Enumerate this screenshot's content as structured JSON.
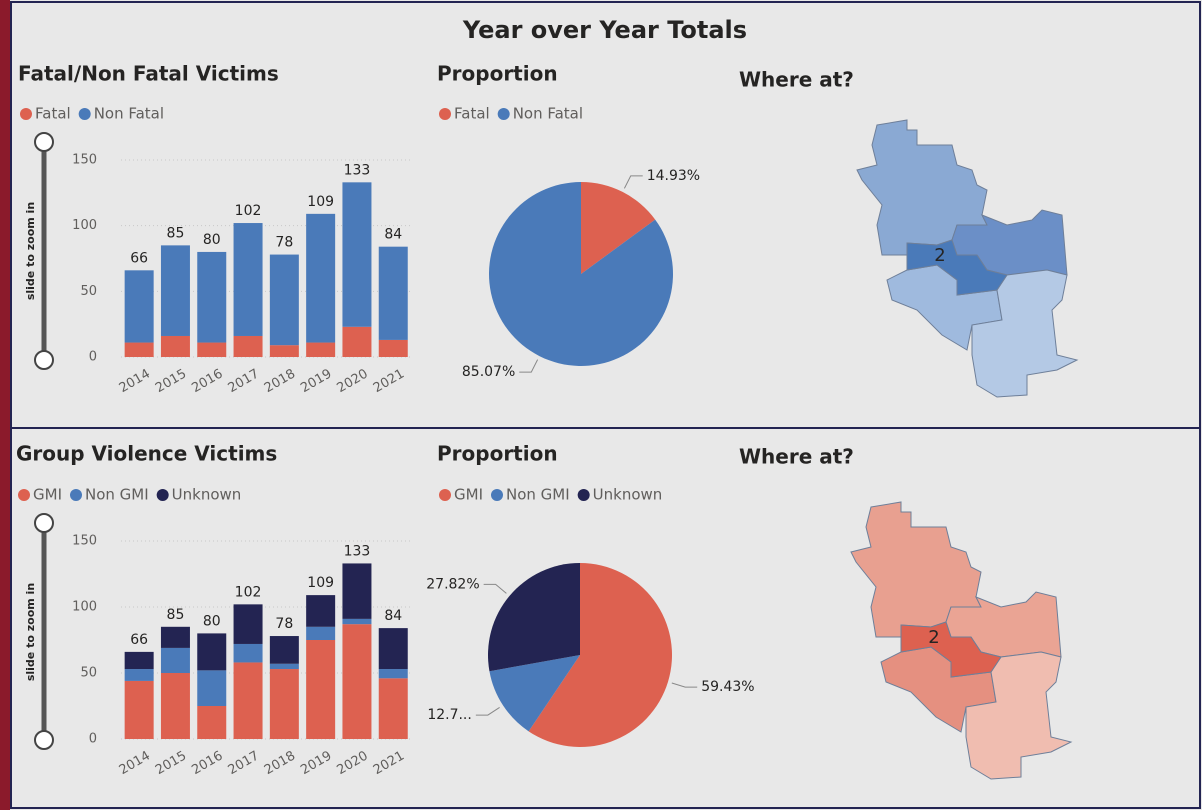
{
  "title": "Year over Year Totals",
  "slider_label": "slide to zoom in",
  "maps": [
    {
      "title": "Where at?",
      "label": "2"
    },
    {
      "title": "Where at?",
      "label": "2"
    }
  ],
  "chart_data": [
    {
      "type": "bar",
      "title": "Fatal/Non Fatal Victims",
      "categories": [
        "2014",
        "2015",
        "2016",
        "2017",
        "2018",
        "2019",
        "2020",
        "2021"
      ],
      "series": [
        {
          "name": "Fatal",
          "color": "#dd6150",
          "values": [
            11,
            16,
            11,
            16,
            9,
            11,
            23,
            13
          ]
        },
        {
          "name": "Non Fatal",
          "color": "#4a7ab9",
          "values": [
            55,
            69,
            69,
            86,
            69,
            98,
            110,
            71
          ]
        }
      ],
      "totals": [
        66,
        85,
        80,
        102,
        78,
        109,
        133,
        84
      ],
      "ylim": [
        0,
        150
      ],
      "yticks": [
        0,
        50,
        100,
        150
      ],
      "grid": true
    },
    {
      "type": "pie",
      "title": "Proportion",
      "categories": [
        "Fatal",
        "Non Fatal"
      ],
      "colors": [
        "#dd6150",
        "#4a7ab9"
      ],
      "values": [
        14.93,
        85.07
      ],
      "value_labels": [
        "14.93%",
        "85.07%"
      ]
    },
    {
      "type": "bar",
      "title": "Group Violence Victims",
      "categories": [
        "2014",
        "2015",
        "2016",
        "2017",
        "2018",
        "2019",
        "2020",
        "2021"
      ],
      "series": [
        {
          "name": "GMI",
          "color": "#dd6150",
          "values": [
            44,
            50,
            25,
            58,
            53,
            75,
            87,
            46
          ]
        },
        {
          "name": "Non GMI",
          "color": "#4a7ab9",
          "values": [
            9,
            19,
            27,
            14,
            4,
            10,
            4,
            7
          ]
        },
        {
          "name": "Unknown",
          "color": "#232452",
          "values": [
            13,
            16,
            28,
            30,
            21,
            24,
            42,
            31
          ]
        }
      ],
      "totals": [
        66,
        85,
        80,
        102,
        78,
        109,
        133,
        84
      ],
      "ylim": [
        0,
        150
      ],
      "yticks": [
        0,
        50,
        100,
        150
      ],
      "grid": true
    },
    {
      "type": "pie",
      "title": "Proportion",
      "categories": [
        "GMI",
        "Non GMI",
        "Unknown"
      ],
      "colors": [
        "#dd6150",
        "#4a7ab9",
        "#232452"
      ],
      "values": [
        59.43,
        12.75,
        27.82
      ],
      "value_labels": [
        "59.43%",
        "12.7...",
        "27.82%"
      ]
    }
  ]
}
